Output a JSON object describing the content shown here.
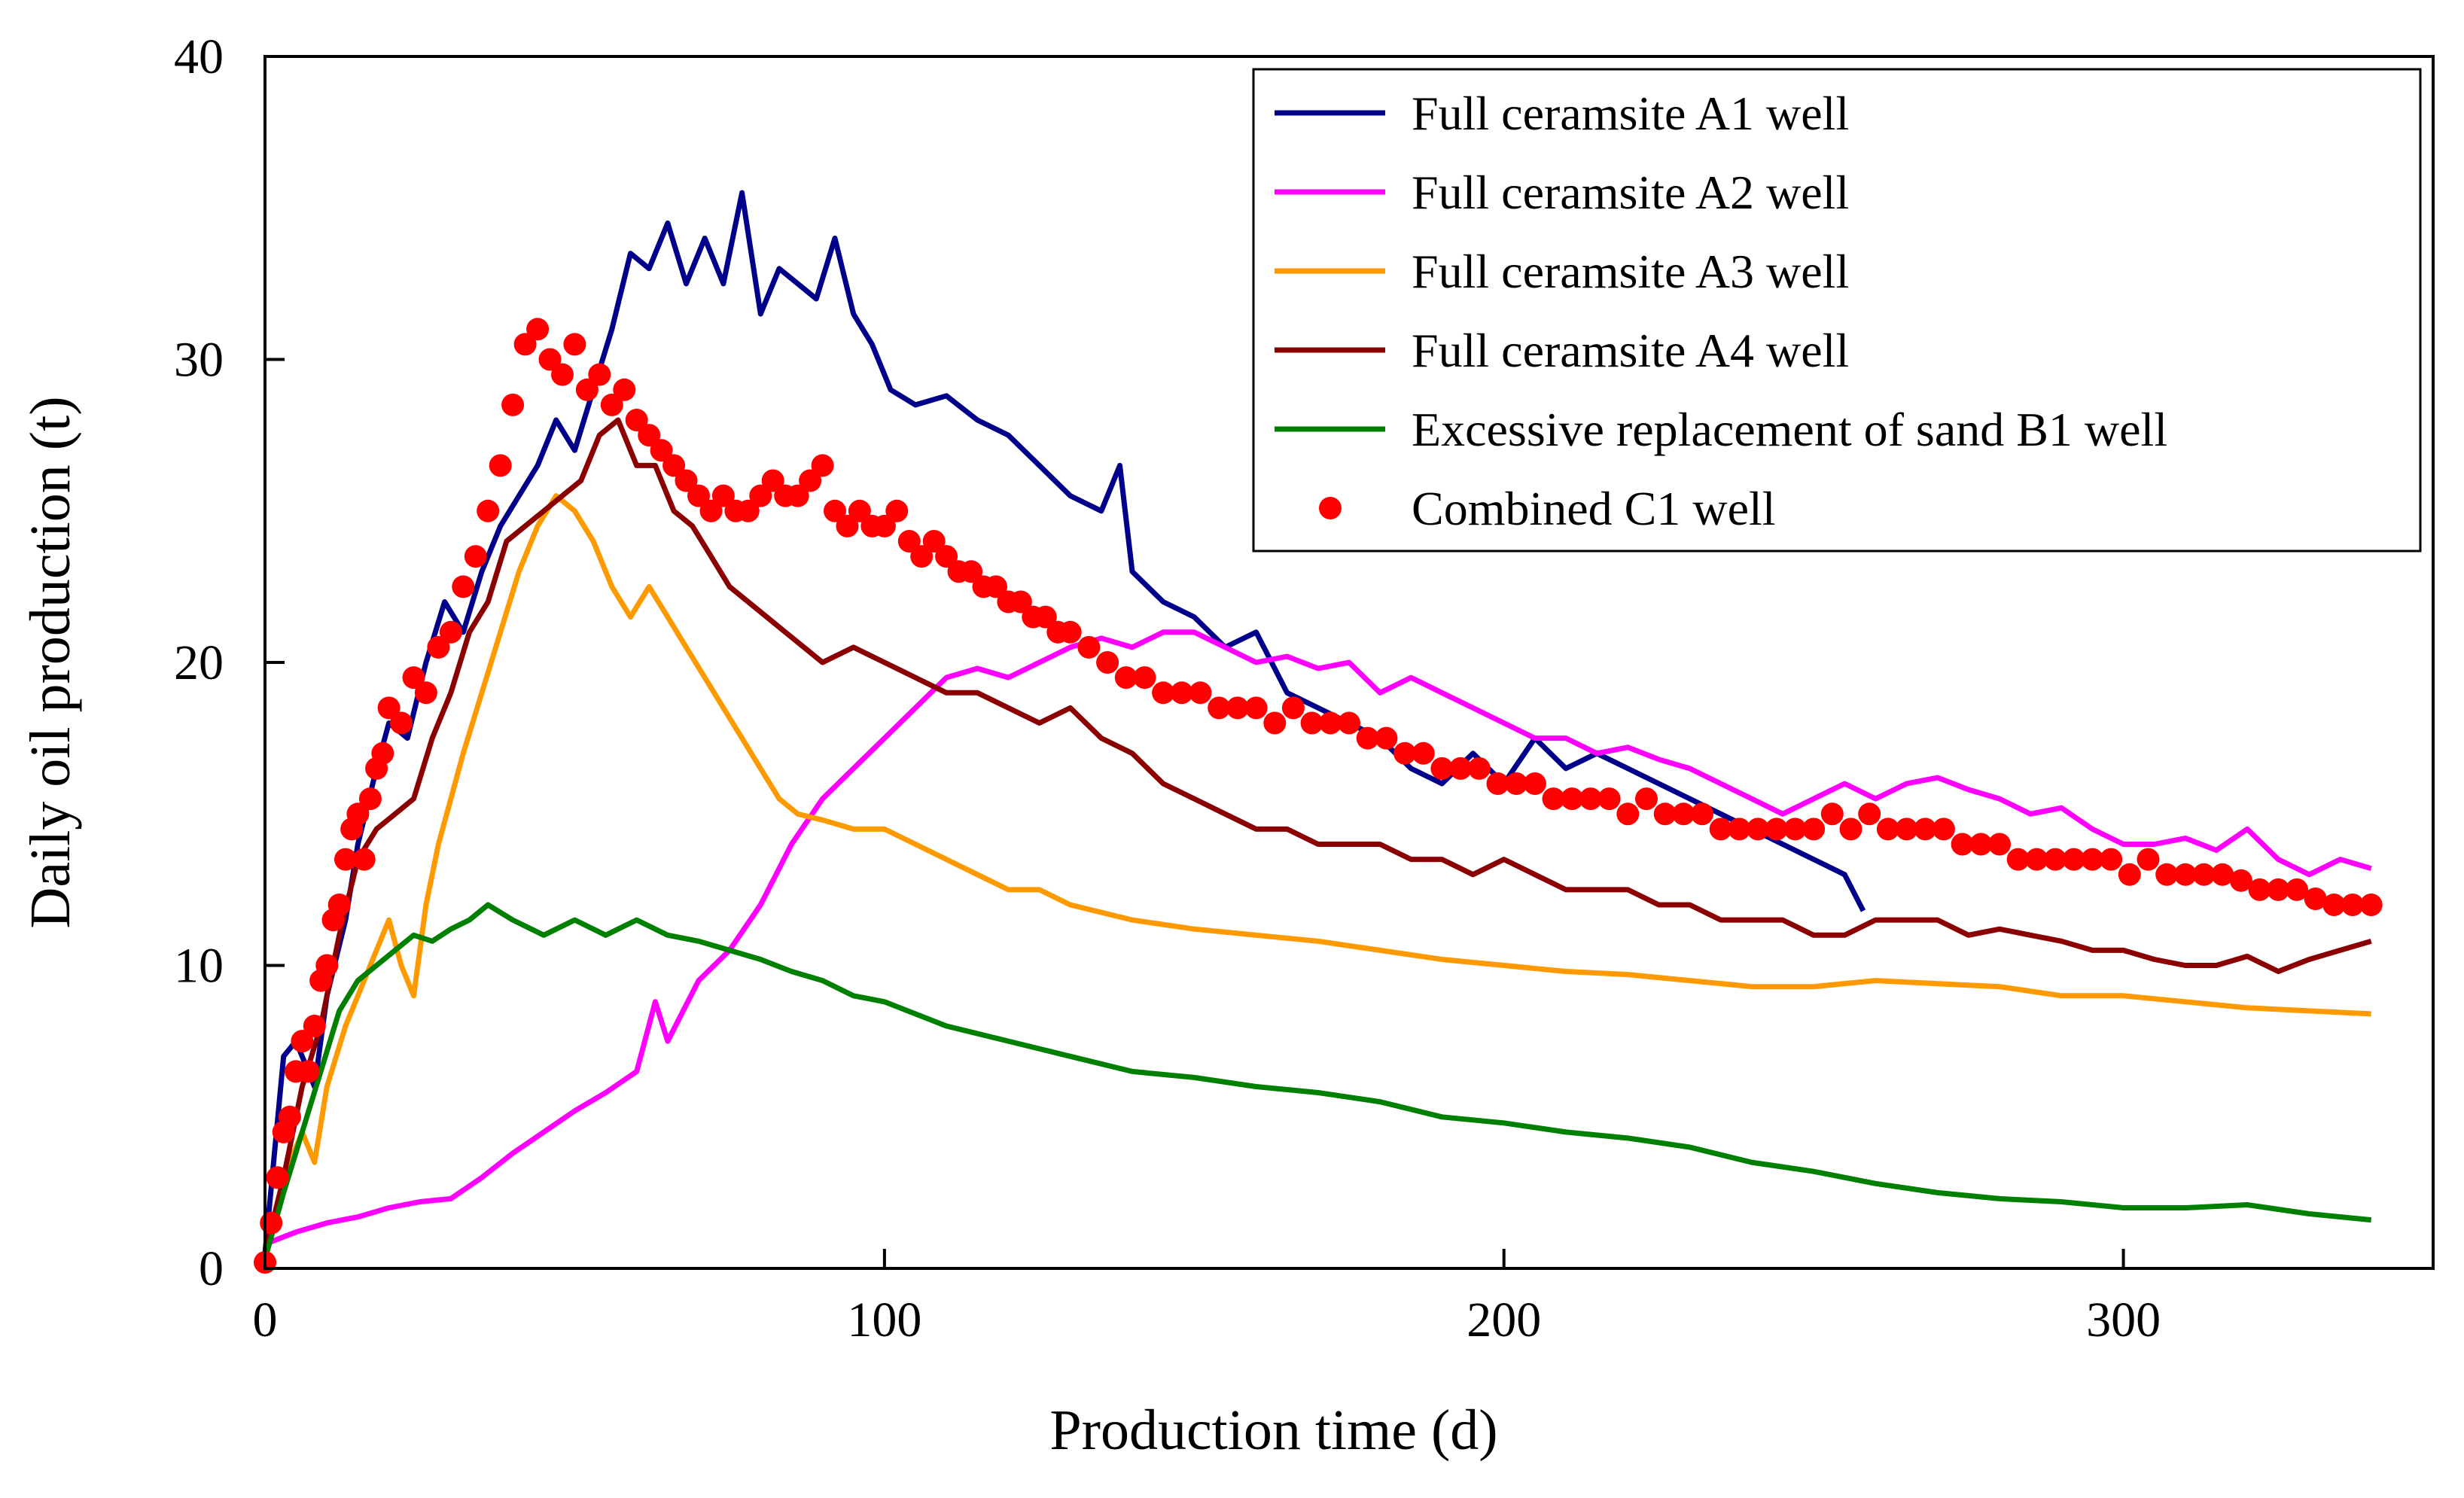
{
  "chart_data": {
    "type": "line",
    "title": "",
    "xlabel": "Production time (d)",
    "ylabel": "Daily oil production (t)",
    "xlim": [
      0,
      350
    ],
    "ylim": [
      0,
      40
    ],
    "xticks": [
      0,
      100,
      200,
      300
    ],
    "yticks": [
      0,
      10,
      20,
      30,
      40
    ],
    "xtick_labels": [
      "0",
      "100",
      "200",
      "300"
    ],
    "ytick_labels": [
      "0",
      "10",
      "20",
      "30",
      "40"
    ],
    "grid": false,
    "legend_position": "top-right",
    "series": [
      {
        "name": "Full ceramsite A1 well",
        "color": "#00008B",
        "style": "line",
        "x": [
          0,
          3,
          5,
          8,
          10,
          13,
          15,
          18,
          20,
          23,
          26,
          29,
          32,
          35,
          38,
          41,
          44,
          47,
          50,
          53,
          56,
          59,
          62,
          65,
          68,
          71,
          74,
          77,
          80,
          83,
          86,
          89,
          92,
          95,
          98,
          101,
          105,
          110,
          115,
          120,
          125,
          130,
          135,
          138,
          140,
          145,
          150,
          155,
          160,
          165,
          170,
          175,
          180,
          185,
          190,
          195,
          200,
          205,
          210,
          215,
          220,
          225,
          230,
          235,
          240,
          245,
          250,
          255,
          258
        ],
        "y": [
          0.5,
          7.0,
          7.5,
          6.0,
          9.0,
          11.5,
          14.0,
          16.5,
          18.0,
          17.5,
          20.0,
          22.0,
          21.0,
          23.0,
          24.5,
          25.5,
          26.5,
          28.0,
          27.0,
          29.0,
          31.0,
          33.5,
          33.0,
          34.5,
          32.5,
          34.0,
          32.5,
          35.5,
          31.5,
          33.0,
          32.5,
          32.0,
          34.0,
          31.5,
          30.5,
          29.0,
          28.5,
          28.8,
          28.0,
          27.5,
          26.5,
          25.5,
          25.0,
          26.5,
          23.0,
          22.0,
          21.5,
          20.5,
          21.0,
          19.0,
          18.5,
          18.0,
          17.5,
          16.5,
          16.0,
          17.0,
          16.0,
          17.5,
          16.5,
          17.0,
          16.5,
          16.0,
          15.5,
          15.0,
          14.5,
          14.0,
          13.5,
          13.0,
          11.8
        ]
      },
      {
        "name": "Full ceramsite A2 well",
        "color": "#FF00FF",
        "style": "line",
        "x": [
          0,
          5,
          10,
          15,
          20,
          25,
          30,
          35,
          40,
          45,
          50,
          55,
          60,
          63,
          65,
          70,
          75,
          80,
          85,
          90,
          95,
          100,
          105,
          110,
          115,
          120,
          125,
          130,
          135,
          140,
          145,
          150,
          155,
          160,
          165,
          170,
          175,
          180,
          185,
          190,
          195,
          200,
          205,
          210,
          215,
          220,
          225,
          230,
          235,
          240,
          245,
          250,
          255,
          260,
          265,
          270,
          275,
          280,
          285,
          290,
          295,
          300,
          305,
          310,
          315,
          320,
          325,
          330,
          335,
          340
        ],
        "y": [
          0.8,
          1.2,
          1.5,
          1.7,
          2.0,
          2.2,
          2.3,
          3.0,
          3.8,
          4.5,
          5.2,
          5.8,
          6.5,
          8.8,
          7.5,
          9.5,
          10.5,
          12.0,
          14.0,
          15.5,
          16.5,
          17.5,
          18.5,
          19.5,
          19.8,
          19.5,
          20.0,
          20.5,
          20.8,
          20.5,
          21.0,
          21.0,
          20.5,
          20.0,
          20.2,
          19.8,
          20.0,
          19.0,
          19.5,
          19.0,
          18.5,
          18.0,
          17.5,
          17.5,
          17.0,
          17.2,
          16.8,
          16.5,
          16.0,
          15.5,
          15.0,
          15.5,
          16.0,
          15.5,
          16.0,
          16.2,
          15.8,
          15.5,
          15.0,
          15.2,
          14.5,
          14.0,
          14.0,
          14.2,
          13.8,
          14.5,
          13.5,
          13.0,
          13.5,
          13.2
        ]
      },
      {
        "name": "Full ceramsite A3 well",
        "color": "#FF9900",
        "style": "line",
        "x": [
          0,
          3,
          6,
          8,
          10,
          13,
          15,
          18,
          20,
          22,
          24,
          26,
          28,
          30,
          32,
          35,
          38,
          41,
          44,
          47,
          50,
          53,
          56,
          59,
          62,
          65,
          68,
          71,
          74,
          77,
          80,
          83,
          86,
          90,
          95,
          100,
          105,
          110,
          115,
          120,
          125,
          130,
          140,
          150,
          160,
          170,
          180,
          190,
          200,
          210,
          220,
          230,
          240,
          250,
          260,
          270,
          280,
          290,
          300,
          310,
          320,
          330,
          340
        ],
        "y": [
          0.3,
          3.0,
          4.5,
          3.5,
          6.0,
          8.0,
          9.0,
          10.5,
          11.5,
          10.0,
          9.0,
          12.0,
          14.0,
          15.5,
          17.0,
          19.0,
          21.0,
          23.0,
          24.5,
          25.5,
          25.0,
          24.0,
          22.5,
          21.5,
          22.5,
          21.5,
          20.5,
          19.5,
          18.5,
          17.5,
          16.5,
          15.5,
          15.0,
          14.8,
          14.5,
          14.5,
          14.0,
          13.5,
          13.0,
          12.5,
          12.5,
          12.0,
          11.5,
          11.2,
          11.0,
          10.8,
          10.5,
          10.2,
          10.0,
          9.8,
          9.7,
          9.5,
          9.3,
          9.3,
          9.5,
          9.4,
          9.3,
          9.0,
          9.0,
          8.8,
          8.6,
          8.5,
          8.4
        ]
      },
      {
        "name": "Full ceramsite A4 well",
        "color": "#8B0000",
        "style": "line",
        "x": [
          0,
          3,
          6,
          9,
          12,
          15,
          18,
          21,
          24,
          27,
          30,
          33,
          36,
          39,
          42,
          45,
          48,
          51,
          54,
          57,
          60,
          63,
          66,
          69,
          72,
          75,
          78,
          81,
          84,
          87,
          90,
          95,
          100,
          105,
          110,
          115,
          120,
          125,
          130,
          135,
          140,
          145,
          150,
          155,
          160,
          165,
          170,
          175,
          180,
          185,
          190,
          195,
          200,
          205,
          210,
          215,
          220,
          225,
          230,
          235,
          240,
          245,
          250,
          255,
          260,
          265,
          270,
          275,
          280,
          285,
          290,
          295,
          300,
          305,
          310,
          315,
          320,
          325,
          330,
          335,
          340
        ],
        "y": [
          0.5,
          3.0,
          6.0,
          8.0,
          11.0,
          13.5,
          14.5,
          15.0,
          15.5,
          17.5,
          19.0,
          21.0,
          22.0,
          24.0,
          24.5,
          25.0,
          25.5,
          26.0,
          27.5,
          28.0,
          26.5,
          26.5,
          25.0,
          24.5,
          23.5,
          22.5,
          22.0,
          21.5,
          21.0,
          20.5,
          20.0,
          20.5,
          20.0,
          19.5,
          19.0,
          19.0,
          18.5,
          18.0,
          18.5,
          17.5,
          17.0,
          16.0,
          15.5,
          15.0,
          14.5,
          14.5,
          14.0,
          14.0,
          14.0,
          13.5,
          13.5,
          13.0,
          13.5,
          13.0,
          12.5,
          12.5,
          12.5,
          12.0,
          12.0,
          11.5,
          11.5,
          11.5,
          11.0,
          11.0,
          11.5,
          11.5,
          11.5,
          11.0,
          11.2,
          11.0,
          10.8,
          10.5,
          10.5,
          10.2,
          10.0,
          10.0,
          10.3,
          9.8,
          10.2,
          10.5,
          10.8
        ]
      },
      {
        "name": "Excessive replacement of sand B1 well",
        "color": "#008000",
        "style": "line",
        "x": [
          0,
          3,
          6,
          9,
          12,
          15,
          18,
          21,
          24,
          27,
          30,
          33,
          36,
          40,
          45,
          50,
          55,
          60,
          65,
          70,
          75,
          80,
          85,
          90,
          95,
          100,
          110,
          120,
          130,
          140,
          150,
          160,
          170,
          180,
          190,
          200,
          210,
          220,
          230,
          240,
          250,
          260,
          270,
          280,
          290,
          300,
          310,
          320,
          330,
          340
        ],
        "y": [
          0.3,
          2.5,
          4.5,
          6.5,
          8.5,
          9.5,
          10.0,
          10.5,
          11.0,
          10.8,
          11.2,
          11.5,
          12.0,
          11.5,
          11.0,
          11.5,
          11.0,
          11.5,
          11.0,
          10.8,
          10.5,
          10.2,
          9.8,
          9.5,
          9.0,
          8.8,
          8.0,
          7.5,
          7.0,
          6.5,
          6.3,
          6.0,
          5.8,
          5.5,
          5.0,
          4.8,
          4.5,
          4.3,
          4.0,
          3.5,
          3.2,
          2.8,
          2.5,
          2.3,
          2.2,
          2.0,
          2.0,
          2.1,
          1.8,
          1.6
        ]
      },
      {
        "name": "Combined C1 well",
        "color": "#FF0000",
        "style": "scatter",
        "x": [
          0,
          1,
          2,
          3,
          4,
          5,
          6,
          7,
          8,
          9,
          10,
          11,
          12,
          13,
          14,
          15,
          16,
          17,
          18,
          19,
          20,
          22,
          24,
          26,
          28,
          30,
          32,
          34,
          36,
          38,
          40,
          42,
          44,
          46,
          48,
          50,
          52,
          54,
          56,
          58,
          60,
          62,
          64,
          66,
          68,
          70,
          72,
          74,
          76,
          78,
          80,
          82,
          84,
          86,
          88,
          90,
          92,
          94,
          96,
          98,
          100,
          102,
          104,
          106,
          108,
          110,
          112,
          114,
          116,
          118,
          120,
          122,
          124,
          126,
          128,
          130,
          133,
          136,
          139,
          142,
          145,
          148,
          151,
          154,
          157,
          160,
          163,
          166,
          169,
          172,
          175,
          178,
          181,
          184,
          187,
          190,
          193,
          196,
          199,
          202,
          205,
          208,
          211,
          214,
          217,
          220,
          223,
          226,
          229,
          232,
          235,
          238,
          241,
          244,
          247,
          250,
          253,
          256,
          259,
          262,
          265,
          268,
          271,
          274,
          277,
          280,
          283,
          286,
          289,
          292,
          295,
          298,
          301,
          304,
          307,
          310,
          313,
          316,
          319,
          322,
          325,
          328,
          331,
          334,
          337,
          340
        ],
        "y": [
          0.2,
          1.5,
          3.0,
          4.5,
          5.0,
          6.5,
          7.5,
          6.5,
          8.0,
          9.5,
          10.0,
          11.5,
          12.0,
          13.5,
          14.5,
          15.0,
          13.5,
          15.5,
          16.5,
          17.0,
          18.5,
          18.0,
          19.5,
          19.0,
          20.5,
          21.0,
          22.5,
          23.5,
          25.0,
          26.5,
          28.5,
          30.5,
          31.0,
          30.0,
          29.5,
          30.5,
          29.0,
          29.5,
          28.5,
          29.0,
          28.0,
          27.5,
          27.0,
          26.5,
          26.0,
          25.5,
          25.0,
          25.5,
          25.0,
          25.0,
          25.5,
          26.0,
          25.5,
          25.5,
          26.0,
          26.5,
          25.0,
          24.5,
          25.0,
          24.5,
          24.5,
          25.0,
          24.0,
          23.5,
          24.0,
          23.5,
          23.0,
          23.0,
          22.5,
          22.5,
          22.0,
          22.0,
          21.5,
          21.5,
          21.0,
          21.0,
          20.5,
          20.0,
          19.5,
          19.5,
          19.0,
          19.0,
          19.0,
          18.5,
          18.5,
          18.5,
          18.0,
          18.5,
          18.0,
          18.0,
          18.0,
          17.5,
          17.5,
          17.0,
          17.0,
          16.5,
          16.5,
          16.5,
          16.0,
          16.0,
          16.0,
          15.5,
          15.5,
          15.5,
          15.5,
          15.0,
          15.5,
          15.0,
          15.0,
          15.0,
          14.5,
          14.5,
          14.5,
          14.5,
          14.5,
          14.5,
          15.0,
          14.5,
          15.0,
          14.5,
          14.5,
          14.5,
          14.5,
          14.0,
          14.0,
          14.0,
          13.5,
          13.5,
          13.5,
          13.5,
          13.5,
          13.5,
          13.0,
          13.5,
          13.0,
          13.0,
          13.0,
          13.0,
          12.8,
          12.5,
          12.5,
          12.5,
          12.2,
          12.0,
          12.0,
          12.0
        ]
      }
    ]
  }
}
